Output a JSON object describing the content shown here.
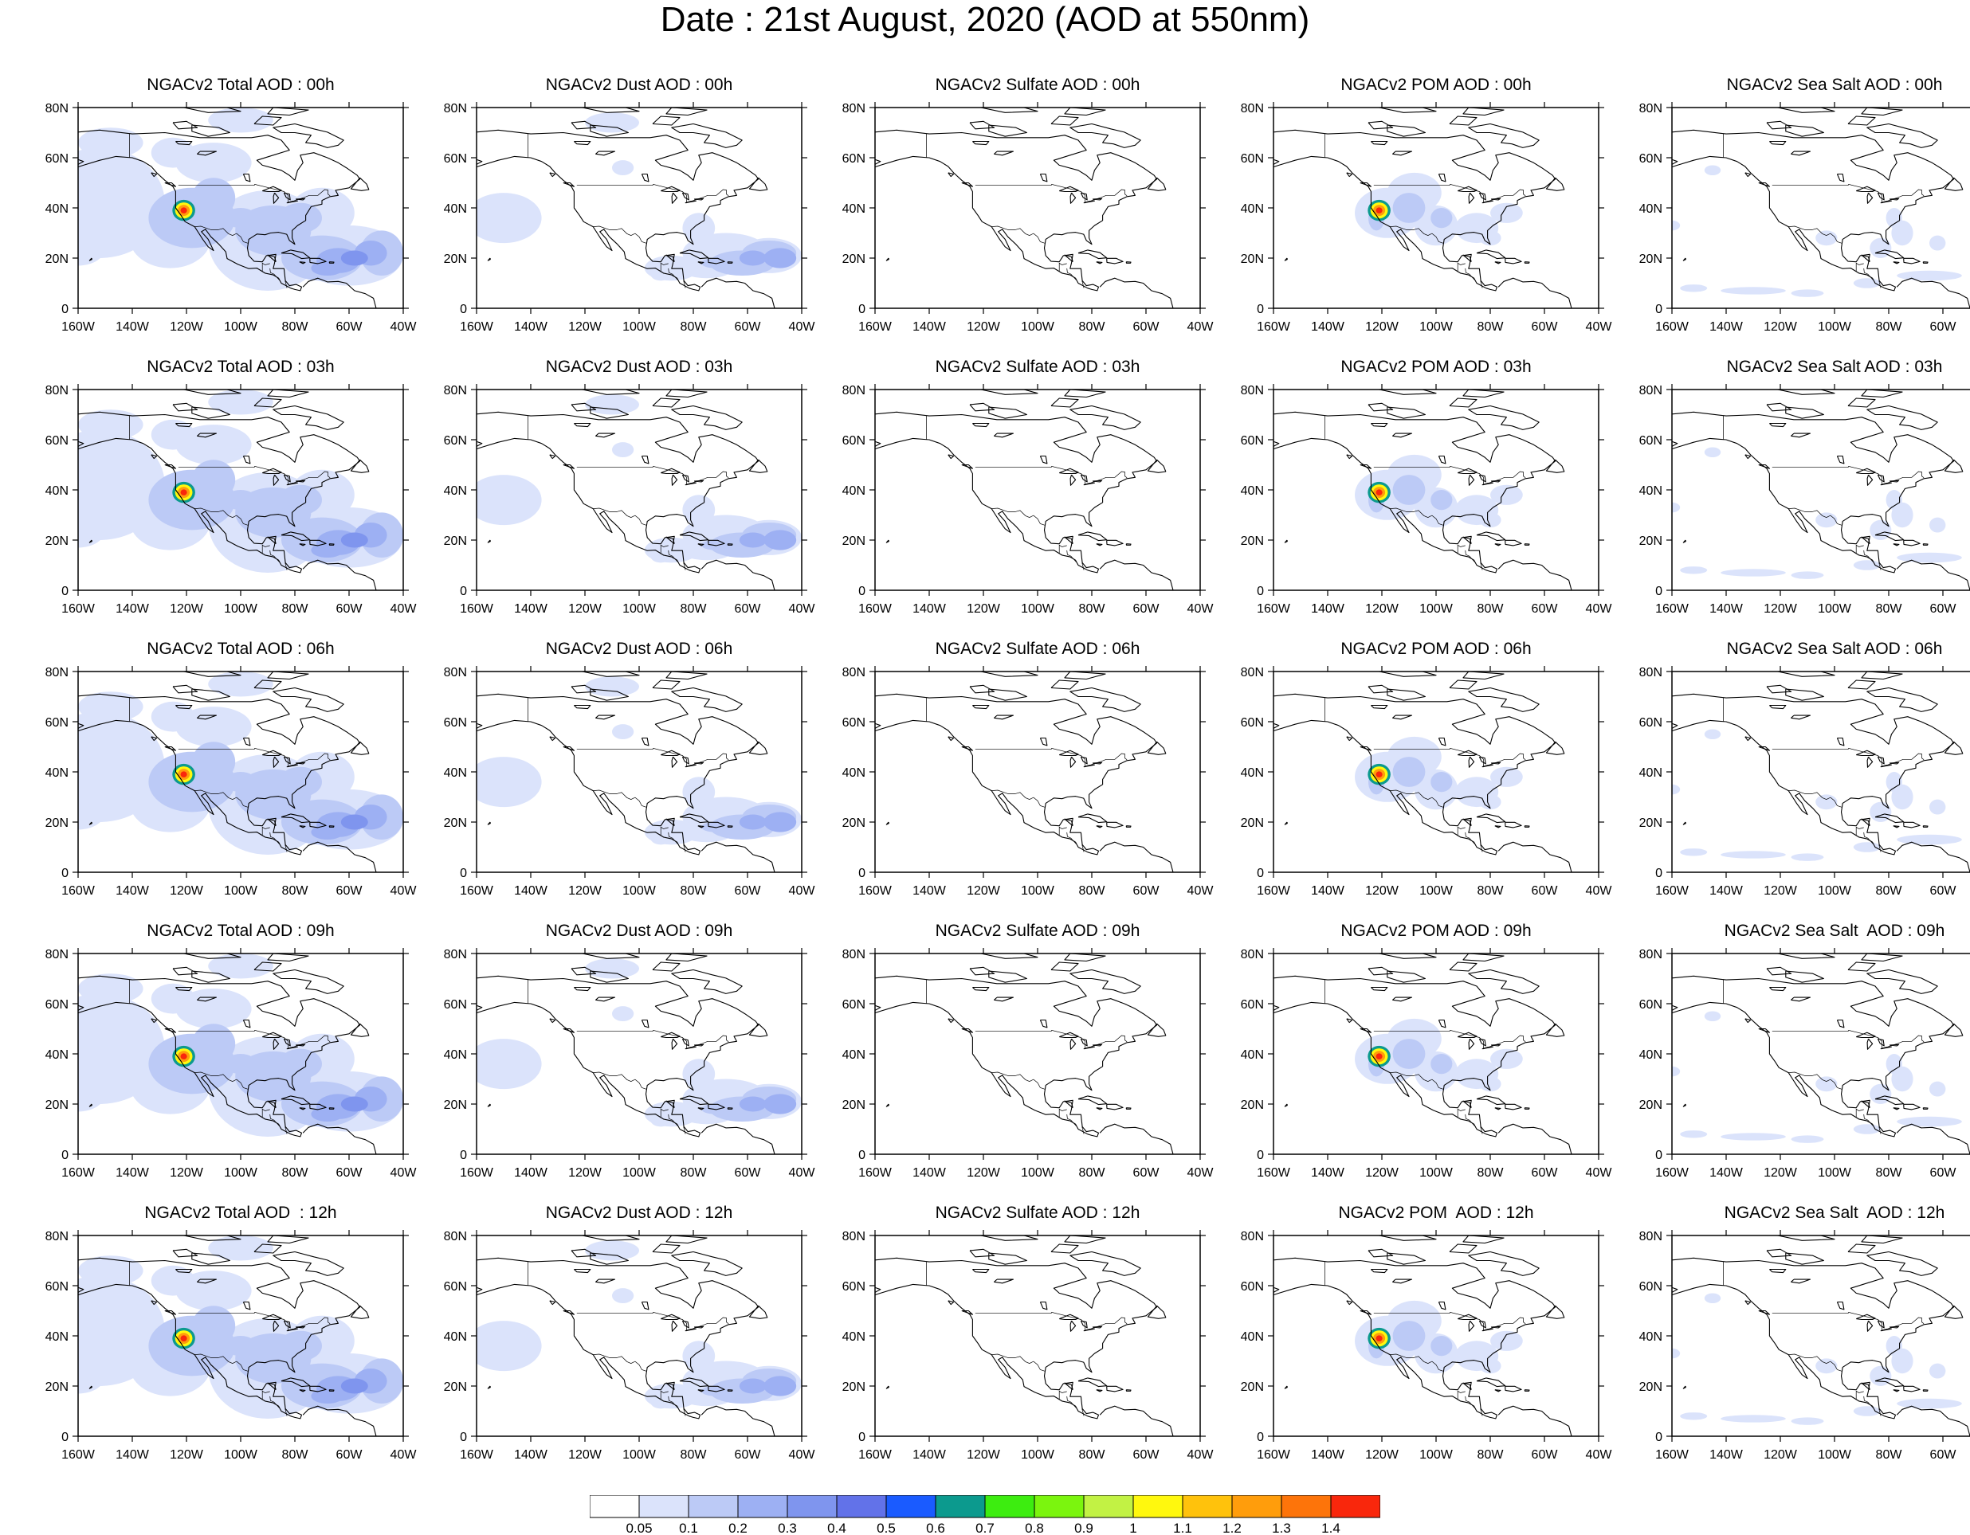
{
  "title": "Date : 21st August, 2020 (AOD at 550nm)",
  "map": {
    "lon_range": [
      -160,
      -40
    ],
    "lat_range": [
      0,
      80
    ],
    "lon_ticks": [
      "160W",
      "140W",
      "120W",
      "100W",
      "80W",
      "60W",
      "40W"
    ],
    "lat_ticks": [
      "0",
      "20N",
      "40N",
      "60N",
      "80N"
    ]
  },
  "panels": [
    {
      "title": "NGACv2 Total AOD : 00h",
      "variable": "total",
      "hour": "00h"
    },
    {
      "title": "NGACv2 Dust AOD : 00h",
      "variable": "dust",
      "hour": "00h"
    },
    {
      "title": "NGACv2 Sulfate AOD : 00h",
      "variable": "sulfate",
      "hour": "00h"
    },
    {
      "title": "NGACv2 POM AOD : 00h",
      "variable": "pom",
      "hour": "00h"
    },
    {
      "title": "NGACv2 Sea Salt AOD : 00h",
      "variable": "seasalt",
      "hour": "00h"
    },
    {
      "title": "NGACv2 Total AOD : 03h",
      "variable": "total",
      "hour": "03h"
    },
    {
      "title": "NGACv2 Dust AOD : 03h",
      "variable": "dust",
      "hour": "03h"
    },
    {
      "title": "NGACv2 Sulfate AOD : 03h",
      "variable": "sulfate",
      "hour": "03h"
    },
    {
      "title": "NGACv2 POM AOD : 03h",
      "variable": "pom",
      "hour": "03h"
    },
    {
      "title": "NGACv2 Sea Salt AOD : 03h",
      "variable": "seasalt",
      "hour": "03h"
    },
    {
      "title": "NGACv2 Total AOD : 06h",
      "variable": "total",
      "hour": "06h"
    },
    {
      "title": "NGACv2 Dust AOD : 06h",
      "variable": "dust",
      "hour": "06h"
    },
    {
      "title": "NGACv2 Sulfate AOD : 06h",
      "variable": "sulfate",
      "hour": "06h"
    },
    {
      "title": "NGACv2 POM AOD : 06h",
      "variable": "pom",
      "hour": "06h"
    },
    {
      "title": "NGACv2 Sea Salt AOD : 06h",
      "variable": "seasalt",
      "hour": "06h"
    },
    {
      "title": "NGACv2 Total AOD : 09h",
      "variable": "total",
      "hour": "09h"
    },
    {
      "title": "NGACv2 Dust AOD : 09h",
      "variable": "dust",
      "hour": "09h"
    },
    {
      "title": "NGACv2 Sulfate AOD : 09h",
      "variable": "sulfate",
      "hour": "09h"
    },
    {
      "title": "NGACv2 POM AOD : 09h",
      "variable": "pom",
      "hour": "09h"
    },
    {
      "title": "NGACv2 Sea Salt  AOD : 09h",
      "variable": "seasalt",
      "hour": "09h"
    },
    {
      "title": "NGACv2 Total AOD  : 12h",
      "variable": "total",
      "hour": "12h"
    },
    {
      "title": "NGACv2 Dust AOD : 12h",
      "variable": "dust",
      "hour": "12h"
    },
    {
      "title": "NGACv2 Sulfate AOD : 12h",
      "variable": "sulfate",
      "hour": "12h"
    },
    {
      "title": "NGACv2 POM  AOD : 12h",
      "variable": "pom",
      "hour": "12h"
    },
    {
      "title": "NGACv2 Sea Salt  AOD : 12h",
      "variable": "seasalt",
      "hour": "12h"
    }
  ],
  "colorbar": {
    "labels": [
      "0.05",
      "0.1",
      "0.2",
      "0.3",
      "0.4",
      "0.5",
      "0.6",
      "0.7",
      "0.8",
      "0.9",
      "1",
      "1.1",
      "1.2",
      "1.3",
      "1.4"
    ],
    "colors": [
      "#ffffff",
      "#dbe3fb",
      "#bccaf6",
      "#9db0f3",
      "#7f95ee",
      "#6272e9",
      "#1a5bff",
      "#0c9a8e",
      "#3ded10",
      "#7bf50e",
      "#c2f244",
      "#fff80e",
      "#ffc20c",
      "#ff9d0c",
      "#fd740a",
      "#f9270c"
    ]
  }
}
